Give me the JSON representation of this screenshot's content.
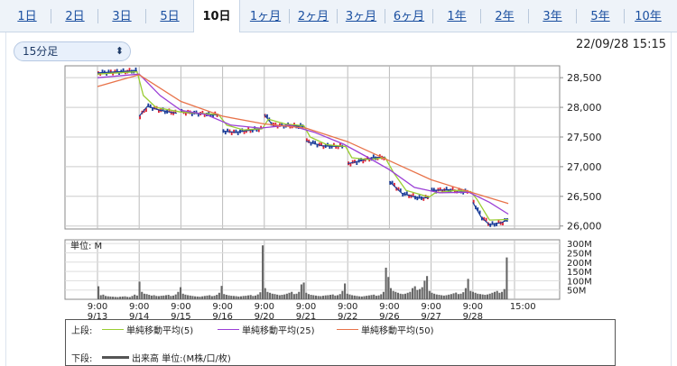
{
  "tabs": [
    {
      "label": "1日",
      "active": false
    },
    {
      "label": "2日",
      "active": false
    },
    {
      "label": "3日",
      "active": false
    },
    {
      "label": "5日",
      "active": false
    },
    {
      "label": "10日",
      "active": true
    },
    {
      "label": "1ヶ月",
      "active": false
    },
    {
      "label": "2ヶ月",
      "active": false
    },
    {
      "label": "3ヶ月",
      "active": false
    },
    {
      "label": "6ヶ月",
      "active": false
    },
    {
      "label": "1年",
      "active": false
    },
    {
      "label": "2年",
      "active": false
    },
    {
      "label": "3年",
      "active": false
    },
    {
      "label": "5年",
      "active": false
    },
    {
      "label": "10年",
      "active": false
    }
  ],
  "interval_select": {
    "value": "15分足",
    "icon": "chevron-updown-icon"
  },
  "timestamp": "22/09/28 15:15",
  "chart_data": [
    {
      "type": "line",
      "panel": "price",
      "y_ticks": [
        "28,500",
        "28,000",
        "27,500",
        "27,000",
        "26,500",
        "26,000"
      ],
      "y_tick_values": [
        28500,
        28000,
        27500,
        27000,
        26500,
        26000
      ],
      "ylim": [
        25950,
        28700
      ],
      "x_sessions": [
        "9/13",
        "9/14",
        "9/15",
        "9/16",
        "9/20",
        "9/21",
        "9/22",
        "9/26",
        "9/27",
        "9/28"
      ],
      "price_path": [
        [
          0,
          28580
        ],
        [
          0.5,
          28600
        ],
        [
          0.95,
          28620
        ],
        [
          1.0,
          27850
        ],
        [
          1.2,
          28020
        ],
        [
          1.5,
          27950
        ],
        [
          1.9,
          27900
        ],
        [
          2.0,
          27920
        ],
        [
          2.5,
          27890
        ],
        [
          2.9,
          27870
        ],
        [
          3.0,
          27600
        ],
        [
          3.3,
          27580
        ],
        [
          3.7,
          27620
        ],
        [
          3.95,
          27640
        ],
        [
          4.0,
          27880
        ],
        [
          4.2,
          27700
        ],
        [
          4.6,
          27690
        ],
        [
          4.95,
          27680
        ],
        [
          5.0,
          27430
        ],
        [
          5.4,
          27350
        ],
        [
          5.9,
          27340
        ],
        [
          6.0,
          27050
        ],
        [
          6.3,
          27100
        ],
        [
          6.6,
          27150
        ],
        [
          6.9,
          27160
        ],
        [
          7.0,
          26750
        ],
        [
          7.3,
          26550
        ],
        [
          7.7,
          26470
        ],
        [
          7.95,
          26480
        ],
        [
          8.0,
          26600
        ],
        [
          8.4,
          26610
        ],
        [
          8.9,
          26570
        ],
        [
          9.0,
          26400
        ],
        [
          9.2,
          26150
        ],
        [
          9.4,
          26020
        ],
        [
          9.7,
          26060
        ],
        [
          9.85,
          26120
        ]
      ],
      "series": [
        {
          "name": "単純移動平均(5)",
          "color": "#9acd32",
          "points": [
            [
              0,
              28560
            ],
            [
              0.95,
              28600
            ],
            [
              1.1,
              28200
            ],
            [
              1.4,
              28000
            ],
            [
              2.0,
              27920
            ],
            [
              2.9,
              27880
            ],
            [
              3.1,
              27700
            ],
            [
              3.5,
              27620
            ],
            [
              3.95,
              27640
            ],
            [
              4.1,
              27800
            ],
            [
              4.5,
              27720
            ],
            [
              4.95,
              27690
            ],
            [
              5.1,
              27500
            ],
            [
              5.5,
              27370
            ],
            [
              5.95,
              27340
            ],
            [
              6.1,
              27150
            ],
            [
              6.5,
              27120
            ],
            [
              6.9,
              27150
            ],
            [
              7.1,
              26900
            ],
            [
              7.4,
              26600
            ],
            [
              7.95,
              26490
            ],
            [
              8.1,
              26560
            ],
            [
              8.6,
              26600
            ],
            [
              8.95,
              26580
            ],
            [
              9.1,
              26450
            ],
            [
              9.4,
              26100
            ],
            [
              9.85,
              26110
            ]
          ]
        },
        {
          "name": "単純移動平均(25)",
          "color": "#9b3fd6",
          "points": [
            [
              0,
              28500
            ],
            [
              1.0,
              28560
            ],
            [
              1.5,
              28200
            ],
            [
              2.0,
              27950
            ],
            [
              2.6,
              27880
            ],
            [
              3.2,
              27700
            ],
            [
              3.9,
              27650
            ],
            [
              4.6,
              27700
            ],
            [
              5.2,
              27580
            ],
            [
              5.9,
              27380
            ],
            [
              6.5,
              27150
            ],
            [
              7.0,
              26950
            ],
            [
              7.6,
              26650
            ],
            [
              8.2,
              26560
            ],
            [
              8.9,
              26570
            ],
            [
              9.4,
              26400
            ],
            [
              9.85,
              26200
            ]
          ]
        },
        {
          "name": "単純移動平均(50)",
          "color": "#e8734a",
          "points": [
            [
              0,
              28350
            ],
            [
              1.0,
              28550
            ],
            [
              2.0,
              28100
            ],
            [
              3.0,
              27850
            ],
            [
              4.0,
              27720
            ],
            [
              5.0,
              27650
            ],
            [
              6.0,
              27420
            ],
            [
              7.0,
              27100
            ],
            [
              8.0,
              26780
            ],
            [
              9.0,
              26560
            ],
            [
              9.85,
              26380
            ]
          ]
        }
      ]
    },
    {
      "type": "bar",
      "panel": "volume",
      "unit_label": "単位: M",
      "y_ticks": [
        "300M",
        "250M",
        "200M",
        "150M",
        "100M",
        "50M"
      ],
      "y_tick_values": [
        300,
        250,
        200,
        150,
        100,
        50
      ],
      "ylim": [
        0,
        320
      ],
      "values": [
        70,
        22,
        25,
        18,
        16,
        15,
        14,
        13,
        12,
        14,
        15,
        16,
        13,
        12,
        18,
        25,
        20,
        95,
        40,
        30,
        28,
        24,
        20,
        22,
        18,
        17,
        19,
        20,
        22,
        24,
        18,
        20,
        26,
        40,
        65,
        30,
        25,
        22,
        20,
        18,
        16,
        15,
        14,
        16,
        18,
        20,
        22,
        17,
        19,
        24,
        35,
        72,
        28,
        24,
        21,
        19,
        18,
        17,
        15,
        16,
        18,
        19,
        21,
        23,
        18,
        20,
        26,
        38,
        290,
        60,
        40,
        35,
        30,
        28,
        25,
        22,
        24,
        26,
        30,
        35,
        40,
        28,
        30,
        40,
        80,
        90,
        35,
        28,
        24,
        22,
        20,
        18,
        17,
        19,
        21,
        22,
        24,
        26,
        20,
        22,
        28,
        45,
        85,
        30,
        26,
        22,
        20,
        18,
        16,
        15,
        17,
        19,
        21,
        23,
        25,
        19,
        21,
        27,
        40,
        170,
        120,
        60,
        45,
        40,
        35,
        30,
        28,
        30,
        35,
        40,
        60,
        70,
        50,
        55,
        65,
        100,
        125,
        45,
        35,
        30,
        26,
        24,
        22,
        20,
        22,
        25,
        28,
        32,
        36,
        28,
        30,
        38,
        60,
        110,
        45,
        40,
        35,
        30,
        28,
        26,
        24,
        26,
        30,
        35,
        40,
        45,
        35,
        40,
        55,
        225
      ],
      "x_tick_labels": [
        [
          "9:00",
          "9/13"
        ],
        [
          "9:00",
          "9/14"
        ],
        [
          "9:00",
          "9/15"
        ],
        [
          "9:00",
          "9/16"
        ],
        [
          "9:00",
          "9/20"
        ],
        [
          "9:00",
          "9/21"
        ],
        [
          "9:00",
          "9/22"
        ],
        [
          "9:00",
          "9/26"
        ],
        [
          "9:00",
          "9/27"
        ],
        [
          "9:00",
          "9/28"
        ],
        [
          "15:00",
          ""
        ]
      ]
    }
  ],
  "legend": {
    "upper_label": "上段:",
    "lower_label": "下段:",
    "items": [
      {
        "name": "単純移動平均(5)",
        "color": "#9acd32"
      },
      {
        "name": "単純移動平均(25)",
        "color": "#9b3fd6"
      },
      {
        "name": "単純移動平均(50)",
        "color": "#e8734a"
      }
    ],
    "volume_item": {
      "name": "出来高 単位:(M株/口/枚)",
      "color": "#555555"
    }
  }
}
